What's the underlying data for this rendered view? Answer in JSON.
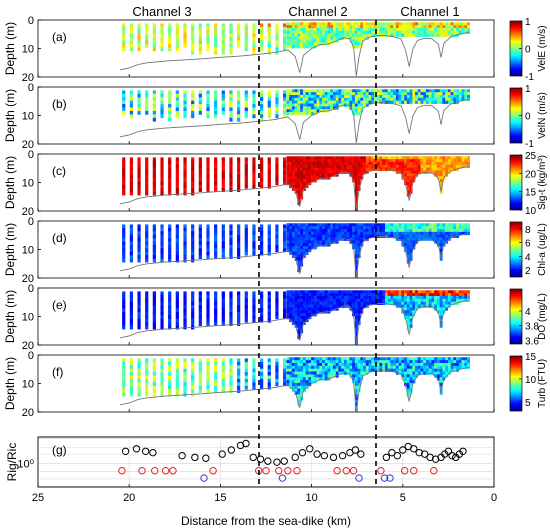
{
  "figure": {
    "channels": [
      "Channel 3",
      "Channel 2",
      "Channel 1"
    ],
    "xlabel": "Distance from the sea-dike (km)",
    "x_ticks": [
      25,
      20,
      15,
      10,
      5,
      0
    ]
  },
  "chart_data": [
    {
      "type": "heatmap",
      "panel": "(a)",
      "ylabel": "Depth (m)",
      "xlim": [
        25,
        0
      ],
      "ylim": [
        20,
        0
      ],
      "y_ticks": [
        0,
        10,
        20
      ],
      "colorbar": {
        "label": "VelE (m/s)",
        "min": -1,
        "max": 1,
        "ticks": [
          1,
          0,
          -1
        ],
        "colormap": "jet"
      }
    },
    {
      "type": "heatmap",
      "panel": "(b)",
      "ylabel": "Depth (m)",
      "xlim": [
        25,
        0
      ],
      "ylim": [
        20,
        0
      ],
      "y_ticks": [
        0,
        10,
        20
      ],
      "colorbar": {
        "label": "VelN (m/s)",
        "min": -1,
        "max": 1,
        "ticks": [
          1,
          0,
          -1
        ],
        "colormap": "jet"
      }
    },
    {
      "type": "heatmap",
      "panel": "(c)",
      "ylabel": "Depth (m)",
      "xlim": [
        25,
        0
      ],
      "ylim": [
        20,
        0
      ],
      "y_ticks": [
        0,
        10,
        20
      ],
      "colorbar": {
        "label": "Sig-t (kg/m³)",
        "min": 10,
        "max": 25,
        "ticks": [
          25,
          20,
          15,
          10
        ],
        "colormap": "jet"
      }
    },
    {
      "type": "heatmap",
      "panel": "(d)",
      "ylabel": "Depth (m)",
      "xlim": [
        25,
        0
      ],
      "ylim": [
        20,
        0
      ],
      "y_ticks": [
        0,
        10,
        20
      ],
      "colorbar": {
        "label": "Chl-a (ug/L)",
        "min": 1,
        "max": 9,
        "ticks": [
          8,
          6,
          4,
          2
        ],
        "colormap": "jet"
      }
    },
    {
      "type": "heatmap",
      "panel": "(e)",
      "ylabel": "Depth (m)",
      "xlim": [
        25,
        0
      ],
      "ylim": [
        20,
        0
      ],
      "y_ticks": [
        0,
        10,
        20
      ],
      "colorbar": {
        "label": "DO (mg/L)",
        "min": 3.55,
        "max": 4.3,
        "ticks": [
          4,
          3.8,
          3.6
        ],
        "colormap": "jet"
      }
    },
    {
      "type": "heatmap",
      "panel": "(f)",
      "ylabel": "Depth (m)",
      "xlim": [
        25,
        0
      ],
      "ylim": [
        20,
        0
      ],
      "y_ticks": [
        0,
        10,
        20
      ],
      "colorbar": {
        "label": "Turb (FTU)",
        "min": 3,
        "max": 15,
        "ticks": [
          15,
          10,
          5
        ],
        "colormap": "jet"
      }
    },
    {
      "type": "scatter",
      "panel": "(g)",
      "ylabel": "Rig/Ric",
      "xlim": [
        25,
        0
      ],
      "y_tick_label": "10⁰",
      "y_scale": "log",
      "grid": true,
      "series": [
        {
          "color": "#000000",
          "points": [
            [
              20.2,
              1.7
            ],
            [
              19.6,
              1.9
            ],
            [
              19.1,
              1.7
            ],
            [
              18.7,
              1.6
            ],
            [
              17.1,
              1.4
            ],
            [
              16.4,
              1.3
            ],
            [
              15.8,
              1.25
            ],
            [
              14.9,
              1.5
            ],
            [
              14.4,
              1.8
            ],
            [
              13.9,
              2.2
            ],
            [
              13.6,
              2.4
            ],
            [
              13.2,
              1.3
            ],
            [
              12.8,
              1.2
            ],
            [
              12.4,
              1.1
            ],
            [
              11.9,
              1.05
            ],
            [
              11.5,
              1.1
            ],
            [
              10.9,
              1.3
            ],
            [
              10.5,
              1.6
            ],
            [
              10.1,
              1.9
            ],
            [
              9.7,
              1.5
            ],
            [
              9.3,
              1.4
            ],
            [
              8.8,
              1.3
            ],
            [
              8.3,
              1.4
            ],
            [
              7.9,
              1.6
            ],
            [
              7.6,
              1.8
            ],
            [
              7.3,
              1.5
            ],
            [
              5.9,
              1.3
            ],
            [
              5.6,
              1.6
            ],
            [
              5.3,
              1.4
            ],
            [
              5.0,
              1.8
            ],
            [
              4.7,
              2.1
            ],
            [
              4.4,
              1.9
            ],
            [
              4.1,
              1.6
            ],
            [
              3.8,
              1.5
            ],
            [
              3.5,
              1.3
            ],
            [
              3.2,
              1.2
            ],
            [
              2.9,
              1.3
            ],
            [
              2.7,
              1.5
            ],
            [
              2.5,
              1.7
            ],
            [
              2.3,
              1.4
            ],
            [
              2.1,
              1.3
            ],
            [
              1.9,
              1.5
            ],
            [
              1.7,
              1.7
            ]
          ]
        },
        {
          "color": "#e02020",
          "points": [
            [
              20.4,
              0.72
            ],
            [
              19.3,
              0.72
            ],
            [
              18.6,
              0.72
            ],
            [
              18.0,
              0.72
            ],
            [
              17.6,
              0.72
            ],
            [
              15.4,
              0.72
            ],
            [
              12.9,
              0.72
            ],
            [
              12.5,
              0.72
            ],
            [
              11.8,
              0.72
            ],
            [
              11.3,
              0.72
            ],
            [
              10.8,
              0.72
            ],
            [
              8.6,
              0.72
            ],
            [
              8.1,
              0.72
            ],
            [
              7.7,
              0.72
            ],
            [
              6.2,
              0.72
            ],
            [
              4.9,
              0.72
            ],
            [
              4.4,
              0.72
            ],
            [
              3.3,
              0.72
            ]
          ]
        },
        {
          "color": "#2a3fd6",
          "points": [
            [
              15.9,
              0.52
            ],
            [
              11.6,
              0.52
            ],
            [
              7.4,
              0.52
            ],
            [
              6.0,
              0.52
            ],
            [
              5.7,
              0.52
            ]
          ]
        }
      ]
    }
  ]
}
